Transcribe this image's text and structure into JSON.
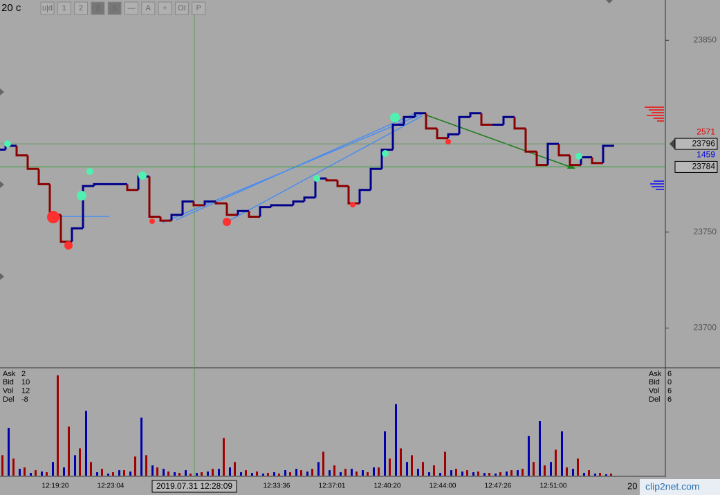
{
  "toolbar": {
    "title": "20 c",
    "buttons": [
      "u|d",
      "1",
      "2",
      "3",
      "S",
      "—",
      "A",
      "+",
      "OI",
      "P"
    ]
  },
  "chart_data": {
    "type": "step",
    "categories": [
      null,
      null,
      null,
      null,
      null,
      "12:19:20",
      null,
      null,
      null,
      null,
      "12:23:04",
      null,
      null,
      null,
      null,
      null,
      null,
      null,
      null,
      null,
      null,
      null,
      null,
      null,
      null,
      "12:33:36",
      null,
      null,
      null,
      null,
      "12:37:01",
      null,
      null,
      null,
      null,
      "12:40:20",
      null,
      null,
      null,
      null,
      "12:44:00",
      null,
      null,
      null,
      null,
      "12:47:26",
      null,
      null,
      null,
      null,
      "12:51:00",
      null,
      null,
      null,
      null,
      null
    ],
    "series": [
      {
        "values": [
          23793,
          23795,
          23790,
          23783,
          23775,
          23759,
          23745,
          23752,
          23774,
          23775,
          23775,
          23775,
          23772,
          23779,
          23758,
          23756,
          23759,
          23766,
          23764,
          23766,
          23765,
          23759,
          23761,
          23758,
          23763,
          23764,
          23764,
          23766,
          23768,
          23778,
          23777,
          23774,
          23765,
          23772,
          23783,
          23793,
          23806,
          23810,
          23812,
          23804,
          23799,
          23801,
          23810,
          23812,
          23806,
          23806,
          23810,
          23804,
          23792,
          23785,
          23796,
          23790,
          23785,
          23789,
          23786,
          23795
        ],
        "up_color": "#00008b",
        "down_color": "#8b0000"
      }
    ],
    "ylim": [
      23680,
      23871
    ],
    "yticks": [
      23700,
      23750,
      23850
    ],
    "volume": {
      "ylim": [
        0,
        150
      ],
      "series": [
        {
          "color": "#0000b0",
          "values": [
            8,
            70,
            10,
            4,
            6,
            20,
            12,
            30,
            95,
            5,
            3,
            8,
            6,
            85,
            15,
            10,
            5,
            8,
            4,
            6,
            10,
            12,
            5,
            4,
            3,
            5,
            8,
            10,
            6,
            20,
            8,
            5,
            10,
            8,
            12,
            65,
            105,
            20,
            10,
            5,
            4,
            8,
            6,
            5,
            4,
            3,
            6,
            8,
            58,
            80,
            20,
            65,
            10,
            4,
            3,
            2
          ]
        },
        {
          "color": "#a00000",
          "values": [
            30,
            25,
            12,
            8,
            5,
            147,
            72,
            40,
            20,
            10,
            5,
            8,
            28,
            30,
            12,
            6,
            4,
            3,
            5,
            10,
            55,
            20,
            8,
            6,
            4,
            3,
            5,
            8,
            10,
            35,
            15,
            10,
            6,
            5,
            12,
            25,
            40,
            30,
            20,
            15,
            35,
            10,
            8,
            6,
            4,
            5,
            8,
            10,
            20,
            15,
            38,
            12,
            25,
            8,
            4,
            3
          ]
        }
      ]
    },
    "last_price": 23796,
    "bid_price": 23784,
    "ask_size": 2571,
    "bid_size": 1459,
    "cursor_time": "2019.07.31 12:28:09",
    "info_left": [
      {
        "label": "Ask",
        "value": 2
      },
      {
        "label": "Bid",
        "value": 10
      },
      {
        "label": "Vol",
        "value": 12
      },
      {
        "label": "Del",
        "value": -8
      }
    ],
    "info_right": [
      {
        "label": "Ask",
        "value": 6
      },
      {
        "label": "Bid",
        "value": 0
      },
      {
        "label": "Vol",
        "value": 6
      },
      {
        "label": "Del",
        "value": 6
      }
    ]
  },
  "bottom_right": "20",
  "watermark": "clip2net.com"
}
